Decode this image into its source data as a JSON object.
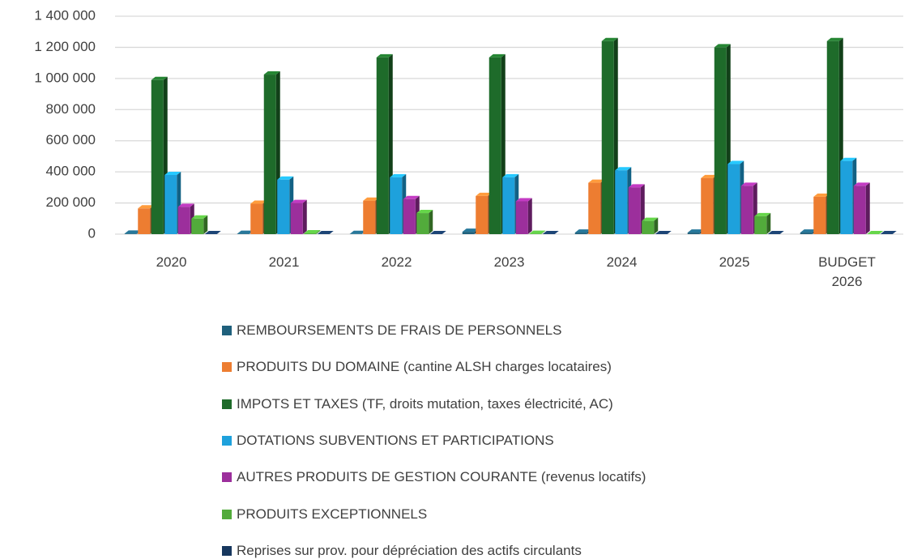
{
  "chart_data": {
    "type": "bar3d",
    "categories": [
      "2020",
      "2021",
      "2022",
      "2023",
      "2024",
      "2025",
      "BUDGET 2026"
    ],
    "series": [
      {
        "name": "REMBOURSEMENTS DE FRAIS DE PERSONNELS",
        "color": "#1f607c",
        "values": [
          3000,
          2000,
          1000,
          15000,
          10000,
          10000,
          10000
        ]
      },
      {
        "name": "PRODUITS  DU DOMAINE (cantine ALSH charges locataires)",
        "color": "#ed7d31",
        "values": [
          165000,
          195000,
          215000,
          245000,
          330000,
          360000,
          240000
        ]
      },
      {
        "name": "IMPOTS ET TAXES (TF, droits mutation, taxes électricité, AC)",
        "color": "#1e6b2a",
        "values": [
          990000,
          1025000,
          1135000,
          1135000,
          1240000,
          1200000,
          1240000
        ]
      },
      {
        "name": "DOTATIONS SUBVENTIONS ET PARTICIPATIONS",
        "color": "#1ea1dc",
        "values": [
          380000,
          350000,
          365000,
          365000,
          410000,
          450000,
          470000
        ]
      },
      {
        "name": "AUTRES PRODUITS DE GESTION COURANTE (revenus locatifs)",
        "color": "#9c2f9c",
        "values": [
          175000,
          200000,
          225000,
          211000,
          300000,
          310000,
          310000
        ]
      },
      {
        "name": "PRODUITS EXCEPTIONNELS",
        "color": "#52ab3b",
        "values": [
          100000,
          5000,
          135000,
          2000,
          85000,
          115000,
          0
        ]
      },
      {
        "name": "Reprises sur prov. pour dépréciation des actifs circulants",
        "color": "#17375e",
        "values": [
          0,
          0,
          0,
          0,
          0,
          0,
          0
        ]
      }
    ],
    "ylim": [
      0,
      1400000
    ],
    "yticks": [
      0,
      {
        "value": 200000,
        "label": "200 000"
      },
      {
        "value": 400000,
        "label": "400 000"
      },
      {
        "value": 600000,
        "label": "600 000"
      },
      {
        "value": 800000,
        "label": "800 000"
      },
      {
        "value": 1000000,
        "label": "1 000 000"
      },
      {
        "value": 1200000,
        "label": "1 200 000"
      },
      {
        "value": 1400000,
        "label": "1 400 000"
      }
    ],
    "grid": true
  }
}
